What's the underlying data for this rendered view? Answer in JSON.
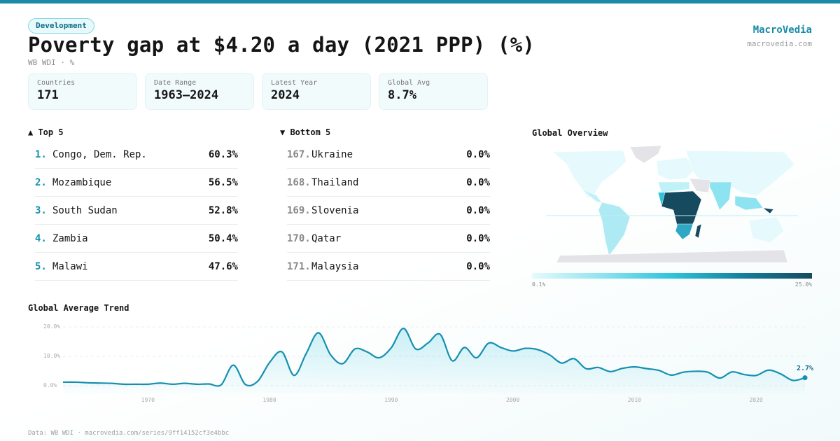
{
  "category": "Development",
  "title": "Poverty gap at $4.20 a day (2021 PPP) (%)",
  "subtitle": "WB WDI · %",
  "brand": {
    "name": "MacroVedia",
    "url": "macrovedia.com"
  },
  "stats": [
    {
      "label": "Countries",
      "value": "171"
    },
    {
      "label": "Date Range",
      "value": "1963–2024"
    },
    {
      "label": "Latest Year",
      "value": "2024"
    },
    {
      "label": "Global Avg",
      "value": "8.7%"
    }
  ],
  "top5": {
    "heading": "▲ Top 5",
    "items": [
      {
        "rank": "1.",
        "name": "Congo, Dem. Rep.",
        "value": "60.3%"
      },
      {
        "rank": "2.",
        "name": "Mozambique",
        "value": "56.5%"
      },
      {
        "rank": "3.",
        "name": "South Sudan",
        "value": "52.8%"
      },
      {
        "rank": "4.",
        "name": "Zambia",
        "value": "50.4%"
      },
      {
        "rank": "5.",
        "name": "Malawi",
        "value": "47.6%"
      }
    ]
  },
  "bottom5": {
    "heading": "▼ Bottom 5",
    "items": [
      {
        "rank": "167.",
        "name": "Ukraine",
        "value": "0.0%"
      },
      {
        "rank": "168.",
        "name": "Thailand",
        "value": "0.0%"
      },
      {
        "rank": "169.",
        "name": "Slovenia",
        "value": "0.0%"
      },
      {
        "rank": "170.",
        "name": "Qatar",
        "value": "0.0%"
      },
      {
        "rank": "171.",
        "name": "Malaysia",
        "value": "0.0%"
      }
    ]
  },
  "map": {
    "heading": "Global Overview",
    "legend_min": "0.1%",
    "legend_max": "25.0%",
    "colors": {
      "low": "#e6fafd",
      "mid": "#2fc3dc",
      "high": "#164a5e",
      "nodata": "#e4e4e8"
    }
  },
  "footer": "Data: WB WDI · macrovedia.com/series/9ff14152cf3e4bbc",
  "chart_data": {
    "type": "area",
    "title": "Global Average Trend",
    "xlabel": "",
    "ylabel": "",
    "xlim": [
      1963,
      2024
    ],
    "ylim": [
      0,
      20
    ],
    "x_ticks": [
      "1970",
      "1980",
      "1990",
      "2000",
      "2010",
      "2020"
    ],
    "y_ticks": [
      "0.0%",
      "10.0%",
      "20.0%"
    ],
    "grid": true,
    "color": "#1590b0",
    "last_label": "2.7%",
    "x": [
      1963,
      1964,
      1965,
      1966,
      1967,
      1968,
      1969,
      1970,
      1971,
      1972,
      1973,
      1974,
      1975,
      1976,
      1977,
      1978,
      1979,
      1980,
      1981,
      1982,
      1983,
      1984,
      1985,
      1986,
      1987,
      1988,
      1989,
      1990,
      1991,
      1992,
      1993,
      1994,
      1995,
      1996,
      1997,
      1998,
      1999,
      2000,
      2001,
      2002,
      2003,
      2004,
      2005,
      2006,
      2007,
      2008,
      2009,
      2010,
      2011,
      2012,
      2013,
      2014,
      2015,
      2016,
      2017,
      2018,
      2019,
      2020,
      2021,
      2022,
      2023,
      2024
    ],
    "values": [
      1.2,
      1.2,
      1.0,
      0.9,
      0.8,
      0.5,
      0.5,
      0.5,
      0.9,
      0.5,
      0.8,
      0.5,
      0.6,
      0.3,
      7.0,
      0.4,
      1.5,
      8.0,
      11.5,
      3.5,
      11.0,
      18.0,
      10.5,
      7.5,
      12.5,
      11.5,
      9.5,
      13.0,
      19.5,
      12.5,
      14.5,
      17.5,
      8.5,
      13.0,
      9.5,
      14.5,
      13.0,
      11.8,
      12.7,
      12.3,
      10.5,
      7.7,
      9.2,
      5.8,
      6.2,
      4.8,
      5.9,
      6.4,
      5.8,
      5.2,
      3.6,
      4.6,
      4.9,
      4.6,
      2.6,
      4.7,
      3.8,
      3.5,
      5.3,
      4.0,
      1.8,
      2.7
    ]
  }
}
